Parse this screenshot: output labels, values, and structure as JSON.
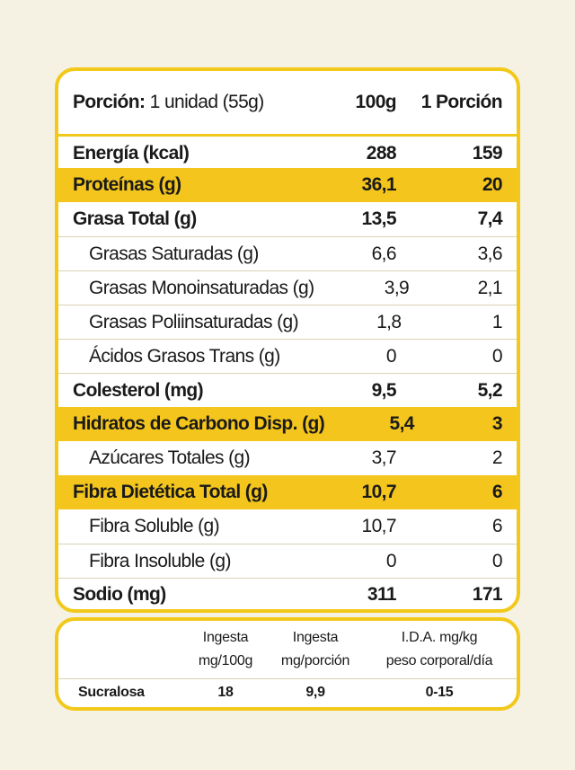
{
  "header": {
    "label": "Porción:",
    "portion": "1 unidad (55g)",
    "col1": "100g",
    "col2": "1 Porción"
  },
  "rows": [
    {
      "label": "Energía (kcal)",
      "v100": "288",
      "vport": "159"
    },
    {
      "label": "Proteínas (g)",
      "v100": "36,1",
      "vport": "20"
    },
    {
      "label": "Grasa Total (g)",
      "v100": "13,5",
      "vport": "7,4"
    },
    {
      "label": "Grasas Saturadas (g)",
      "v100": "6,6",
      "vport": "3,6"
    },
    {
      "label": "Grasas Monoinsaturadas (g)",
      "v100": "3,9",
      "vport": "2,1"
    },
    {
      "label": "Grasas Poliinsaturadas (g)",
      "v100": "1,8",
      "vport": "1"
    },
    {
      "label": "Ácidos Grasos Trans (g)",
      "v100": "0",
      "vport": "0"
    },
    {
      "label": "Colesterol (mg)",
      "v100": "9,5",
      "vport": "5,2"
    },
    {
      "label": "Hidratos de Carbono Disp. (g)",
      "v100": "5,4",
      "vport": "3"
    },
    {
      "label": "Azúcares Totales (g)",
      "v100": "3,7",
      "vport": "2"
    },
    {
      "label": "Fibra Dietética Total (g)",
      "v100": "10,7",
      "vport": "6"
    },
    {
      "label": "Fibra Soluble (g)",
      "v100": "10,7",
      "vport": "6"
    },
    {
      "label": "Fibra Insoluble (g)",
      "v100": "0",
      "vport": "0"
    },
    {
      "label": "Sodio (mg)",
      "v100": "311",
      "vport": "171"
    }
  ],
  "sweetener": {
    "headers": {
      "intake100_line1": "Ingesta",
      "intake100_line2": "mg/100g",
      "intakePortion_line1": "Ingesta",
      "intakePortion_line2": "mg/porción",
      "ida_line1": "I.D.A. mg/kg",
      "ida_line2": "peso corporal/día"
    },
    "row": {
      "name": "Sucralosa",
      "intake100": "18",
      "intakePortion": "9,9",
      "ida": "0-15"
    }
  },
  "colors": {
    "accent": "#f4c51c",
    "border": "#f2c91b",
    "background": "#f6f2e3"
  }
}
